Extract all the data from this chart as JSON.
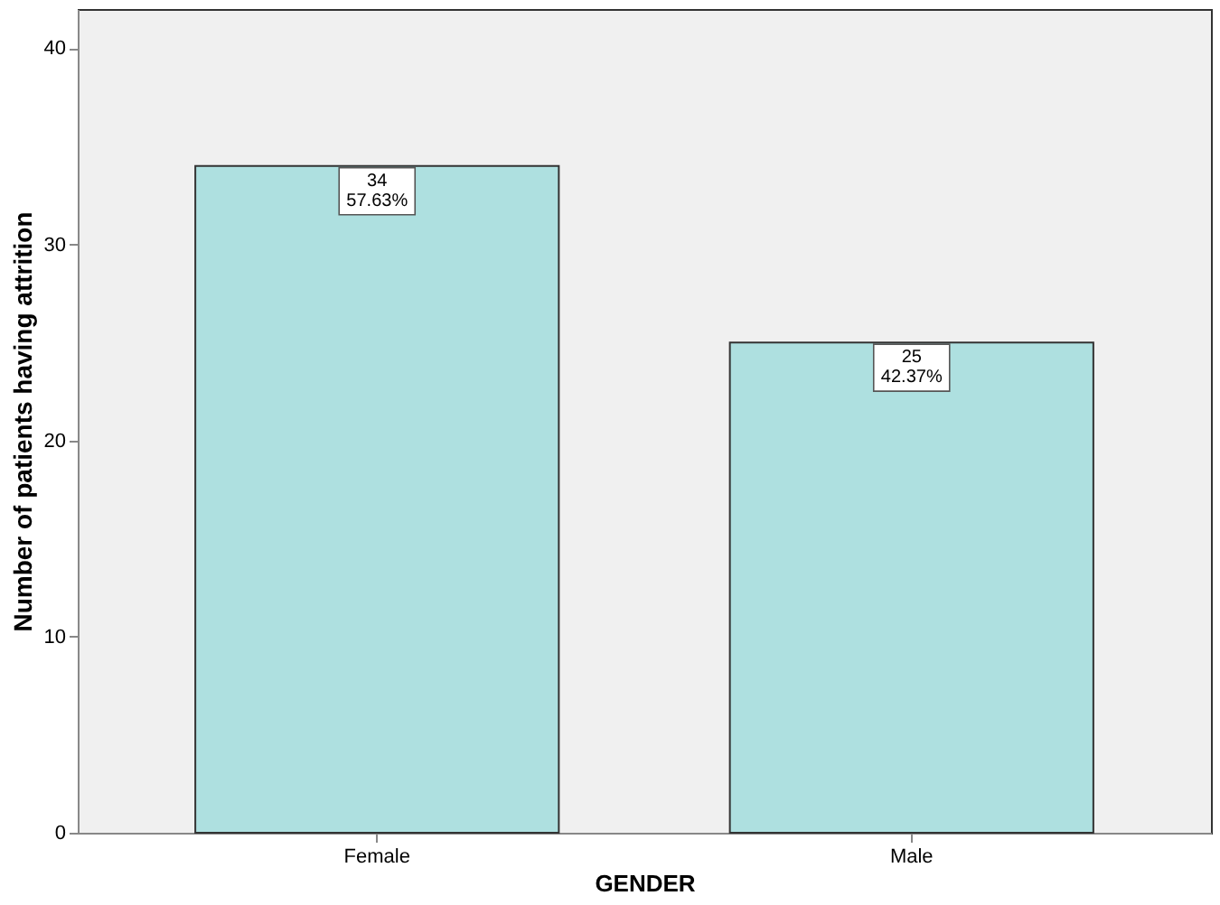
{
  "chart_data": {
    "type": "bar",
    "xlabel": "GENDER",
    "ylabel": "Number of patients having attrition",
    "categories": [
      "Female",
      "Male"
    ],
    "series": [
      {
        "color": "#aee0e0",
        "values": [
          34,
          25
        ],
        "value_labels": [
          "34\n57.63%",
          "25\n42.37%"
        ]
      }
    ],
    "ylim": [
      0,
      42
    ],
    "yticks": [
      0,
      10,
      20,
      30,
      40
    ],
    "grid": false
  }
}
